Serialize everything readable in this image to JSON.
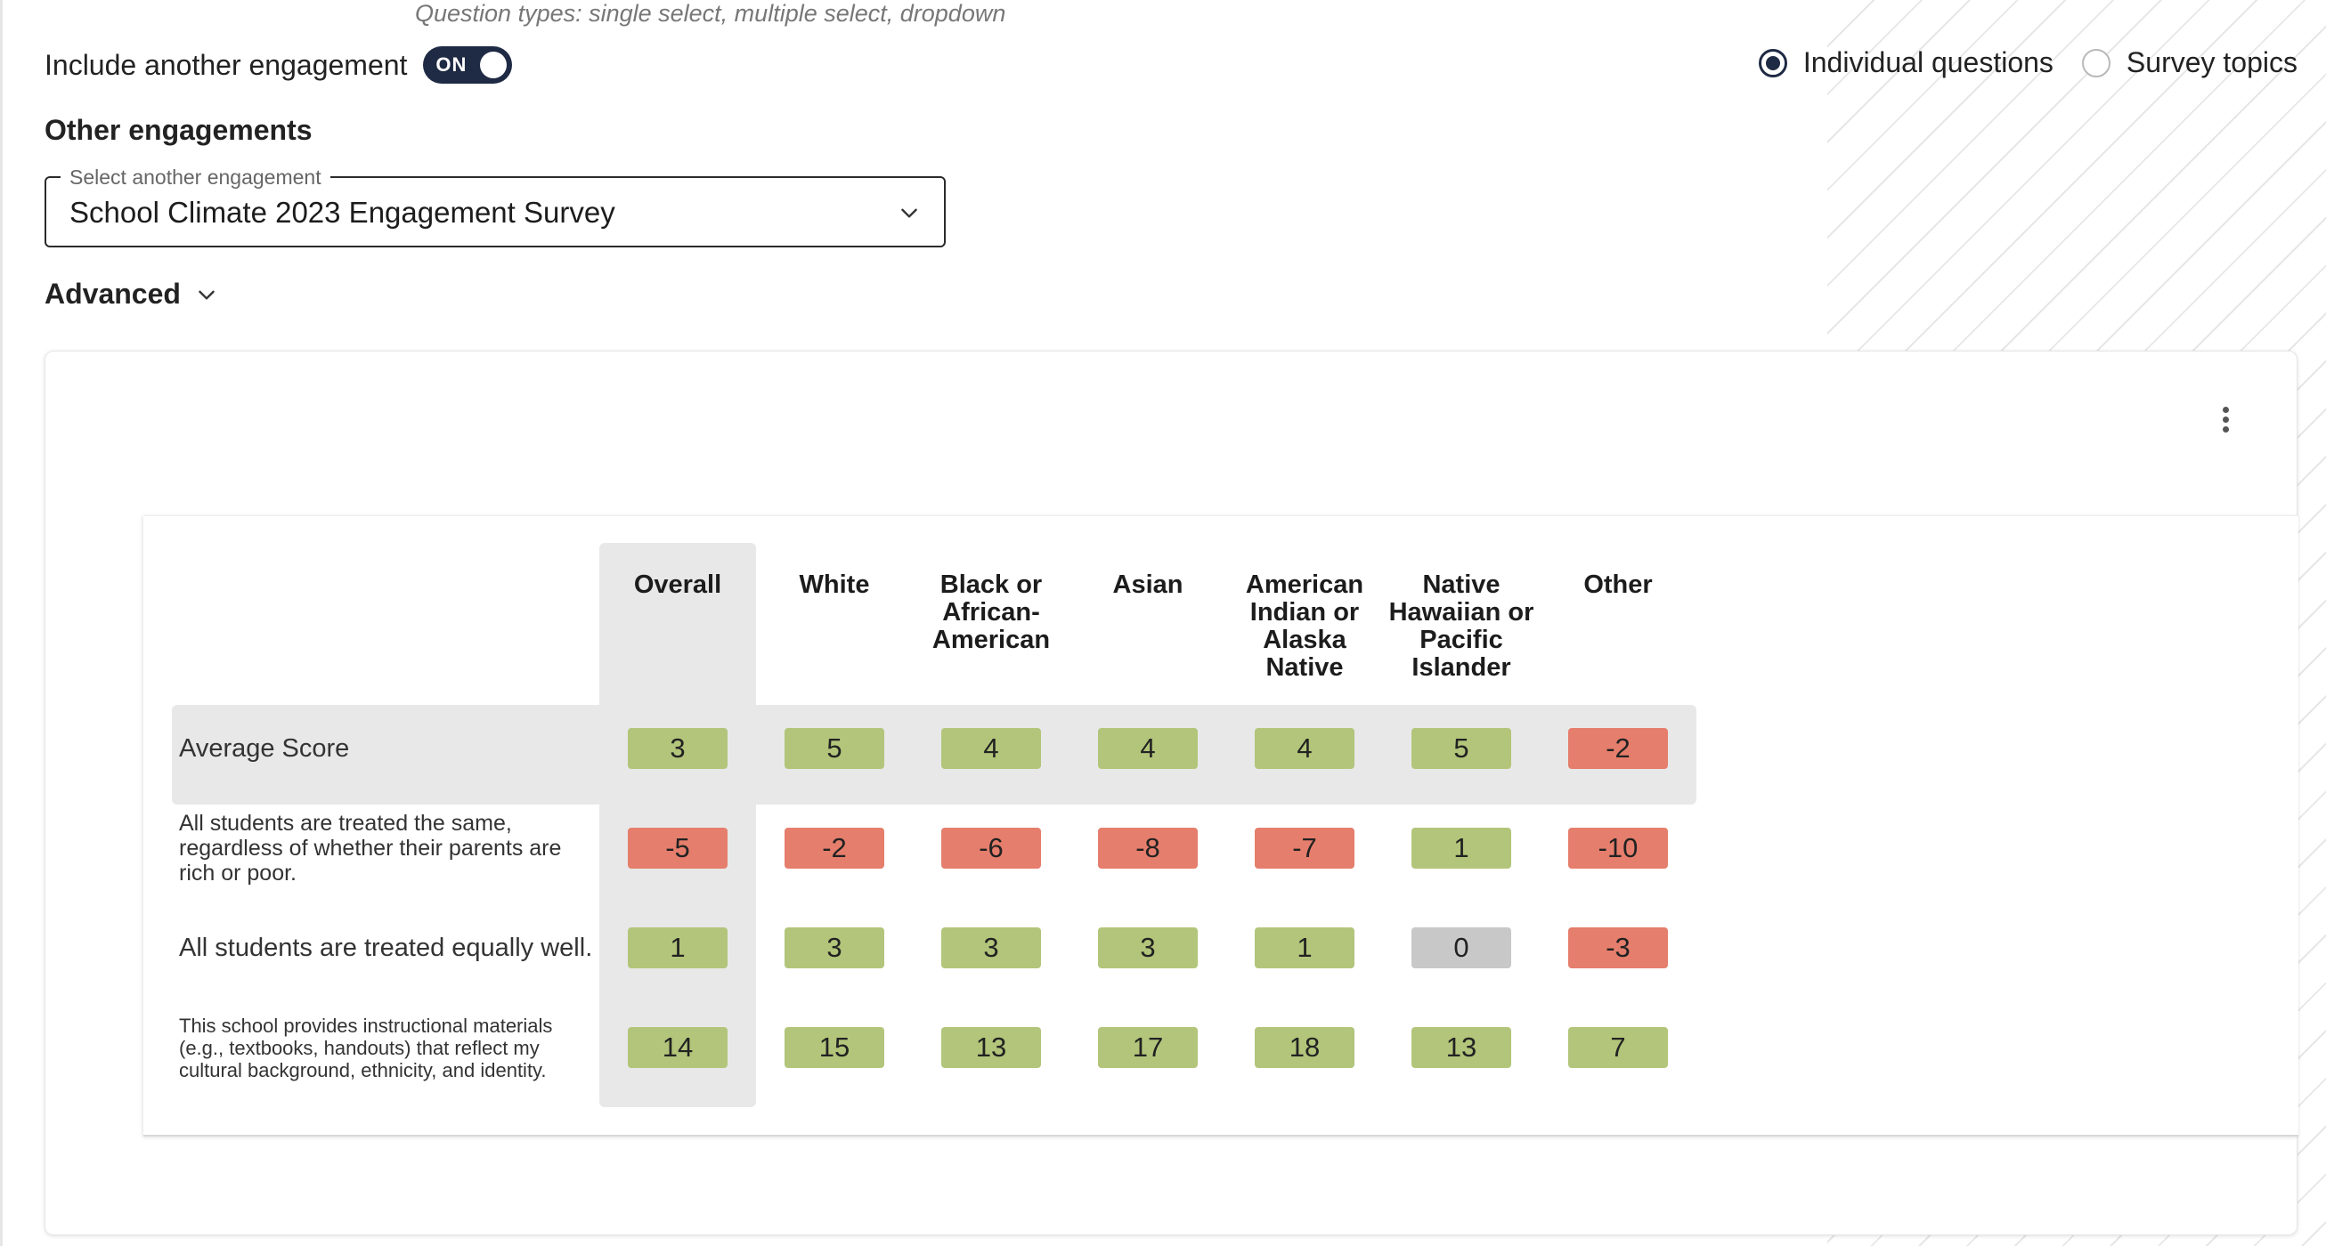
{
  "header": {
    "question_types": "Question types: single select, multiple select, dropdown",
    "include_label": "Include another engagement",
    "toggle_text": "ON",
    "radio_options": [
      "Individual questions",
      "Survey topics"
    ],
    "selected_radio": "Individual questions"
  },
  "other_engagements": {
    "title": "Other engagements",
    "select_legend": "Select another engagement",
    "select_value": "School Climate 2023 Engagement Survey"
  },
  "advanced": {
    "label": "Advanced"
  },
  "icons": {
    "chevron": "chevron-down-icon",
    "menu": "more-vertical-icon"
  },
  "colors": {
    "positive": "#b2c57a",
    "negative": "#e57e6c",
    "neutral": "#c8c8c8",
    "highlight": "#e8e8e8",
    "toggle": "#1f2a44"
  },
  "table": {
    "columns": [
      [
        "Overall"
      ],
      [
        "White"
      ],
      [
        "Black or",
        "African-",
        "American"
      ],
      [
        "Asian"
      ],
      [
        "American",
        "Indian or",
        "Alaska",
        "Native"
      ],
      [
        "Native",
        "Hawaiian or",
        "Pacific",
        "Islander"
      ],
      [
        "Other"
      ]
    ],
    "rows": [
      {
        "label": "Average Score",
        "values": [
          3,
          5,
          4,
          4,
          4,
          5,
          -2
        ]
      },
      {
        "label": "All students are treated the same, regardless of whether their parents are rich or poor.",
        "values": [
          -5,
          -2,
          -6,
          -8,
          -7,
          1,
          -10
        ]
      },
      {
        "label": "All students are treated equally well.",
        "values": [
          1,
          3,
          3,
          3,
          1,
          0,
          -3
        ]
      },
      {
        "label": "This school provides instructional materials (e.g., textbooks, handouts) that reflect my cultural background, ethnicity, and identity.",
        "values": [
          14,
          15,
          13,
          17,
          18,
          13,
          7
        ]
      }
    ]
  }
}
